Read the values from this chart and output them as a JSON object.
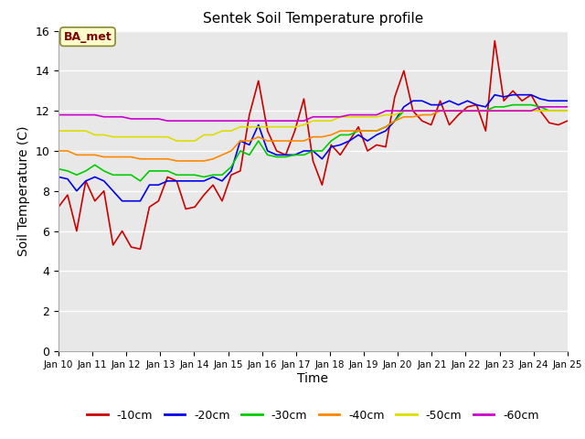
{
  "title": "Sentek Soil Temperature profile",
  "xlabel": "Time",
  "ylabel": "Soil Temperature (C)",
  "annotation": "BA_met",
  "plot_bg_color": "#e8e8e8",
  "fig_bg_color": "#ffffff",
  "ylim": [
    0,
    16
  ],
  "yticks": [
    0,
    2,
    4,
    6,
    8,
    10,
    12,
    14,
    16
  ],
  "x_labels": [
    "Jan 10",
    "Jan 11",
    "Jan 12",
    "Jan 13",
    "Jan 14",
    "Jan 15",
    "Jan 16",
    "Jan 17",
    "Jan 18",
    "Jan 19",
    "Jan 20",
    "Jan 21",
    "Jan 22",
    "Jan 23",
    "Jan 24",
    "Jan 25"
  ],
  "series_order": [
    "-10cm",
    "-20cm",
    "-30cm",
    "-40cm",
    "-50cm",
    "-60cm"
  ],
  "series": {
    "-10cm": {
      "color": "#cc0000",
      "values": [
        7.2,
        7.8,
        6.0,
        8.5,
        7.5,
        8.0,
        5.3,
        6.0,
        5.2,
        5.1,
        7.2,
        7.5,
        8.7,
        8.5,
        7.1,
        7.2,
        7.8,
        8.3,
        7.5,
        8.8,
        9.0,
        11.8,
        13.5,
        11.0,
        10.0,
        9.8,
        11.0,
        12.6,
        9.5,
        8.3,
        10.3,
        9.8,
        10.5,
        11.2,
        10.0,
        10.3,
        10.2,
        12.7,
        14.0,
        12.0,
        11.5,
        11.3,
        12.5,
        11.3,
        11.8,
        12.2,
        12.3,
        11.0,
        15.5,
        12.5,
        13.0,
        12.5,
        12.8,
        12.0,
        11.4,
        11.3,
        11.5
      ]
    },
    "-20cm": {
      "color": "#0000ee",
      "values": [
        8.7,
        8.6,
        8.0,
        8.5,
        8.7,
        8.5,
        8.0,
        7.5,
        7.5,
        7.5,
        8.3,
        8.3,
        8.5,
        8.5,
        8.5,
        8.5,
        8.5,
        8.7,
        8.5,
        9.0,
        10.5,
        10.3,
        11.3,
        10.0,
        9.8,
        9.8,
        9.8,
        10.0,
        10.0,
        9.6,
        10.2,
        10.3,
        10.5,
        10.8,
        10.5,
        10.8,
        11.0,
        11.5,
        12.2,
        12.5,
        12.5,
        12.3,
        12.3,
        12.5,
        12.3,
        12.5,
        12.3,
        12.2,
        12.8,
        12.7,
        12.8,
        12.8,
        12.8,
        12.6,
        12.5,
        12.5,
        12.5
      ]
    },
    "-30cm": {
      "color": "#00cc00",
      "values": [
        9.1,
        9.0,
        8.8,
        9.0,
        9.3,
        9.0,
        8.8,
        8.8,
        8.8,
        8.5,
        9.0,
        9.0,
        9.0,
        8.8,
        8.8,
        8.8,
        8.7,
        8.8,
        8.8,
        9.2,
        10.0,
        9.8,
        10.5,
        9.8,
        9.7,
        9.7,
        9.8,
        9.8,
        10.0,
        10.0,
        10.5,
        10.8,
        10.8,
        11.0,
        11.0,
        11.0,
        11.2,
        11.5,
        12.0,
        12.0,
        12.0,
        12.0,
        12.0,
        12.0,
        12.0,
        12.0,
        12.0,
        12.0,
        12.2,
        12.2,
        12.3,
        12.3,
        12.3,
        12.2,
        12.0,
        12.0,
        12.0
      ]
    },
    "-40cm": {
      "color": "#ff8800",
      "values": [
        10.0,
        10.0,
        9.8,
        9.8,
        9.8,
        9.7,
        9.7,
        9.7,
        9.7,
        9.6,
        9.6,
        9.6,
        9.6,
        9.5,
        9.5,
        9.5,
        9.5,
        9.6,
        9.8,
        10.0,
        10.5,
        10.5,
        10.7,
        10.5,
        10.5,
        10.5,
        10.5,
        10.5,
        10.7,
        10.7,
        10.8,
        11.0,
        11.0,
        11.0,
        11.0,
        11.0,
        11.2,
        11.5,
        11.7,
        11.7,
        11.8,
        11.8,
        12.0,
        12.0,
        12.0,
        12.0,
        12.0,
        12.0,
        12.0,
        12.0,
        12.0,
        12.0,
        12.0,
        12.0,
        12.0,
        12.0,
        12.0
      ]
    },
    "-50cm": {
      "color": "#dddd00",
      "values": [
        11.0,
        11.0,
        11.0,
        11.0,
        10.8,
        10.8,
        10.7,
        10.7,
        10.7,
        10.7,
        10.7,
        10.7,
        10.7,
        10.5,
        10.5,
        10.5,
        10.8,
        10.8,
        11.0,
        11.0,
        11.2,
        11.2,
        11.2,
        11.2,
        11.2,
        11.2,
        11.2,
        11.3,
        11.5,
        11.5,
        11.5,
        11.7,
        11.7,
        11.7,
        11.7,
        11.7,
        11.8,
        11.8,
        12.0,
        12.0,
        12.0,
        12.0,
        12.0,
        12.0,
        12.0,
        12.0,
        12.0,
        12.0,
        12.0,
        12.0,
        12.0,
        12.0,
        12.0,
        12.0,
        12.0,
        12.0,
        12.0
      ]
    },
    "-60cm": {
      "color": "#cc00cc",
      "values": [
        11.8,
        11.8,
        11.8,
        11.8,
        11.8,
        11.7,
        11.7,
        11.7,
        11.6,
        11.6,
        11.6,
        11.6,
        11.5,
        11.5,
        11.5,
        11.5,
        11.5,
        11.5,
        11.5,
        11.5,
        11.5,
        11.5,
        11.5,
        11.5,
        11.5,
        11.5,
        11.5,
        11.5,
        11.7,
        11.7,
        11.7,
        11.7,
        11.8,
        11.8,
        11.8,
        11.8,
        12.0,
        12.0,
        12.0,
        12.0,
        12.0,
        12.0,
        12.0,
        12.0,
        12.0,
        12.0,
        12.0,
        12.0,
        12.0,
        12.0,
        12.0,
        12.0,
        12.0,
        12.2,
        12.2,
        12.2,
        12.2
      ]
    }
  }
}
